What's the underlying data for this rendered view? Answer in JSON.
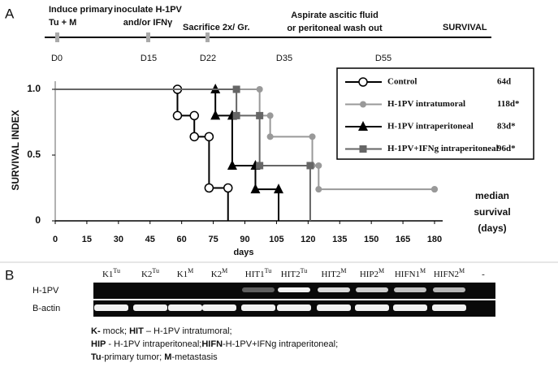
{
  "panel_a": "A",
  "panel_b": "B",
  "timeline": {
    "label": "SURVIVAL",
    "events": [
      [
        "Induce primary",
        "Tu + M"
      ],
      [
        "inoculate H-1PV",
        "and/or IFNγ"
      ],
      [
        "Sacrifice 2x/ Gr."
      ],
      [
        "Aspirate ascitic fluid",
        "or peritoneal wash out"
      ]
    ],
    "days": [
      "D0",
      "D15",
      "D22",
      "D35",
      "D55"
    ]
  },
  "chart_data": {
    "type": "step",
    "ylabel": "SURVIVAL INDEX",
    "xlabel": "days",
    "annotation": [
      "median",
      "survival",
      "(days)"
    ],
    "xlim": [
      0,
      180
    ],
    "xticks": [
      0,
      15,
      30,
      45,
      60,
      75,
      90,
      105,
      120,
      135,
      150,
      165,
      180
    ],
    "ylim": [
      0,
      1
    ],
    "yticks": [
      0,
      0.5,
      {
        "value": 1,
        "label": "1.0"
      }
    ],
    "legend": "upper right",
    "series": [
      {
        "name": "Control",
        "median": "64d",
        "color": "#000000",
        "marker": "open-circle",
        "x": [
          0,
          58,
          66,
          73,
          82
        ],
        "values": [
          1,
          0.8,
          0.64,
          0.25,
          0
        ]
      },
      {
        "name": "H-1PV intratumoral",
        "median": "118d*",
        "color": "#999999",
        "marker": "circle",
        "x": [
          0,
          97,
          102,
          122,
          125,
          180
        ],
        "values": [
          1,
          0.8,
          0.64,
          0.42,
          0.24,
          0.24
        ]
      },
      {
        "name": "H-1PV intraperitoneal",
        "median": "83d*",
        "color": "#000000",
        "marker": "triangle",
        "x": [
          0,
          76,
          84,
          95,
          106
        ],
        "values": [
          1,
          0.8,
          0.42,
          0.24,
          0
        ]
      },
      {
        "name": "H-1PV+IFNg intraperitoneal",
        "median": "96d*",
        "color": "#666666",
        "marker": "square",
        "x": [
          0,
          86,
          97,
          121
        ],
        "values": [
          1,
          0.8,
          0.42,
          0
        ]
      }
    ]
  },
  "gel": {
    "rows": [
      "H-1PV",
      "B-actin"
    ],
    "lanes": [
      {
        "base": "K1",
        "sup": "Tu"
      },
      {
        "base": "K2",
        "sup": "Tu"
      },
      {
        "base": "K1",
        "sup": "M"
      },
      {
        "base": "K2",
        "sup": "M"
      },
      {
        "base": "HIT1",
        "sup": "Tu"
      },
      {
        "base": "HIT2",
        "sup": "Tu"
      },
      {
        "base": "HIT2",
        "sup": "M"
      },
      {
        "base": "HIP2",
        "sup": "M"
      },
      {
        "base": "HIFN1",
        "sup": "M"
      },
      {
        "base": "HIFN2",
        "sup": "M"
      },
      {
        "base": "-",
        "sup": ""
      }
    ],
    "legend": [
      [
        {
          "text": "K-",
          "bold": true
        },
        {
          "text": " mock; ",
          "bold": false
        },
        {
          "text": "HIT",
          "bold": true
        },
        {
          "text": " – H-1PV intratumoral;",
          "bold": false
        }
      ],
      [
        {
          "text": "HIP",
          "bold": true
        },
        {
          "text": " - H-1PV intraperitoneal;",
          "bold": false
        },
        {
          "text": "HIFN",
          "bold": true
        },
        {
          "text": "-H-1PV+IFNg intraperitoneal;",
          "bold": false
        }
      ],
      [
        {
          "text": "Tu",
          "bold": true
        },
        {
          "text": "-primary tumor; ",
          "bold": false
        },
        {
          "text": "M",
          "bold": true
        },
        {
          "text": "-metastasis",
          "bold": false
        }
      ]
    ]
  }
}
